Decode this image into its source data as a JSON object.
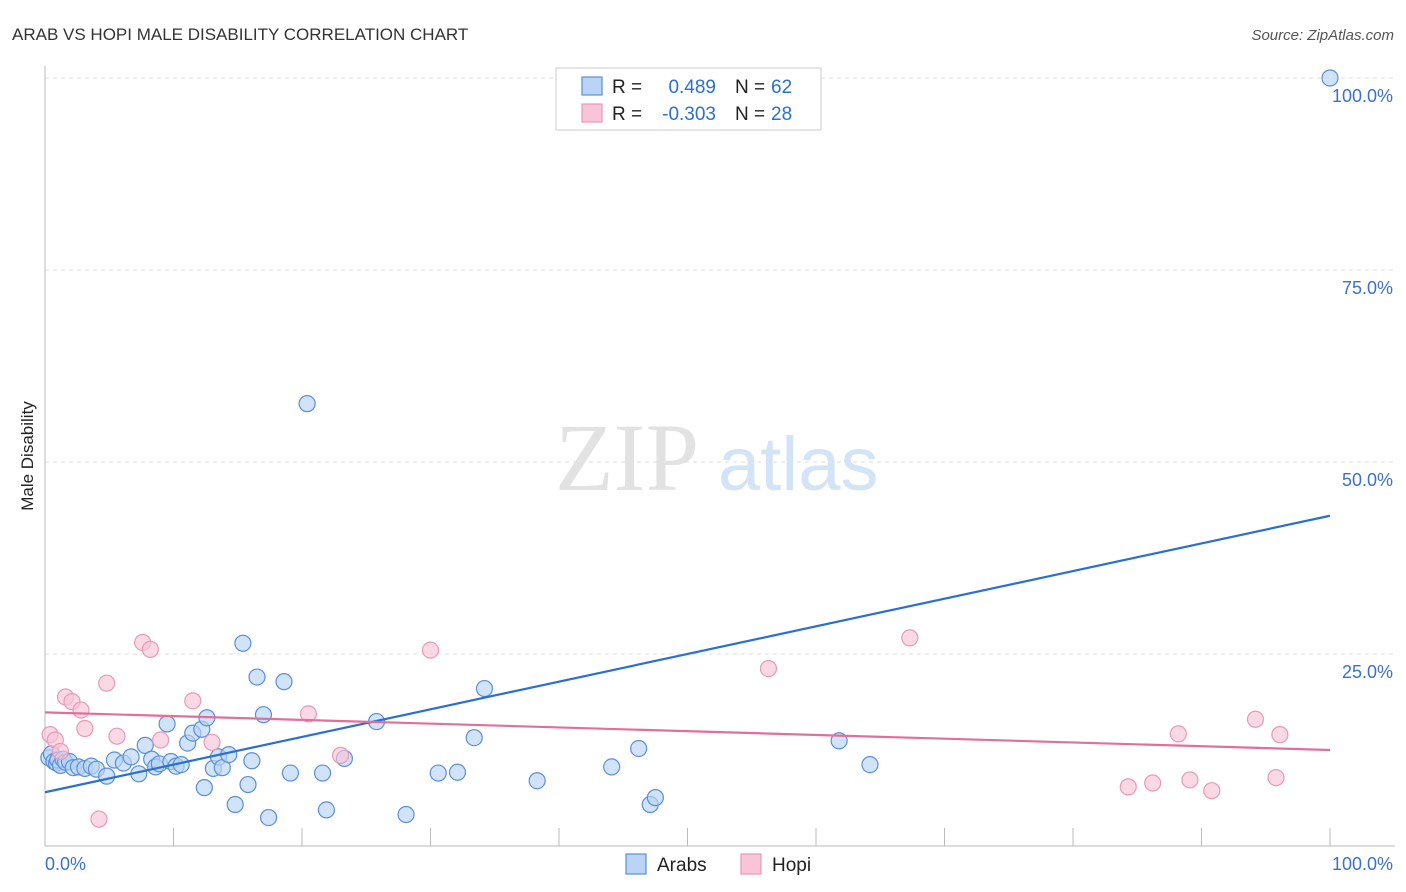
{
  "header": {
    "title": "ARAB VS HOPI MALE DISABILITY CORRELATION CHART",
    "source": "Source: ZipAtlas.com"
  },
  "watermark": {
    "zip": "ZIP",
    "atlas": "atlas"
  },
  "legend_stats": [
    {
      "r_label": "R =",
      "r_value": "0.489",
      "n_label": "N =",
      "n_value": "62",
      "color": "#5b8fd6",
      "fill": "#b9d4f5"
    },
    {
      "r_label": "R =",
      "r_value": "-0.303",
      "n_label": "N =",
      "n_value": "28",
      "color": "#e27a9f",
      "fill": "#f7c5d6"
    }
  ],
  "bottom_legend": [
    "Arabs",
    "Hopi"
  ],
  "colors": {
    "arabs_line": "#2a6fd3",
    "hopi_line": "#e0709a",
    "arabs_point_stroke": "#5b8fd6",
    "arabs_point_fill": "#b9d4f5",
    "hopi_point_stroke": "#e89ab6",
    "hopi_point_fill": "#f7c5d6",
    "tick_label": "#3a72c4",
    "grid": "#dddddd"
  },
  "chart_data": {
    "type": "scatter",
    "title": "ARAB VS HOPI MALE DISABILITY CORRELATION CHART",
    "xlabel": "",
    "ylabel": "Male Disability",
    "xlim": [
      0,
      100
    ],
    "ylim": [
      0,
      100
    ],
    "x_tick_labels": [
      "0.0%",
      "100.0%"
    ],
    "y_ticks": [
      25,
      50,
      75,
      100
    ],
    "y_tick_labels": [
      "25.0%",
      "50.0%",
      "75.0%",
      "100.0%"
    ],
    "grid": true,
    "legend_placement": "bottom-center",
    "series": [
      {
        "name": "Arabs",
        "points": [
          [
            0.3,
            11.5
          ],
          [
            0.5,
            12.0
          ],
          [
            0.7,
            11.0
          ],
          [
            0.9,
            10.8
          ],
          [
            1.0,
            11.2
          ],
          [
            1.2,
            10.5
          ],
          [
            1.4,
            11.3
          ],
          [
            1.6,
            10.9
          ],
          [
            1.9,
            11.0
          ],
          [
            2.2,
            10.2
          ],
          [
            2.6,
            10.3
          ],
          [
            3.1,
            10.1
          ],
          [
            3.6,
            10.4
          ],
          [
            4.0,
            10.0
          ],
          [
            4.8,
            9.1
          ],
          [
            5.4,
            11.2
          ],
          [
            6.1,
            10.8
          ],
          [
            6.7,
            11.6
          ],
          [
            7.3,
            9.4
          ],
          [
            7.8,
            13.1
          ],
          [
            8.3,
            11.3
          ],
          [
            8.6,
            10.3
          ],
          [
            8.9,
            10.7
          ],
          [
            9.5,
            15.9
          ],
          [
            9.8,
            11.0
          ],
          [
            10.2,
            10.4
          ],
          [
            10.6,
            10.6
          ],
          [
            11.1,
            13.4
          ],
          [
            11.5,
            14.7
          ],
          [
            12.2,
            15.2
          ],
          [
            12.4,
            7.6
          ],
          [
            12.6,
            16.7
          ],
          [
            13.1,
            10.1
          ],
          [
            13.5,
            11.6
          ],
          [
            13.8,
            10.2
          ],
          [
            14.3,
            11.9
          ],
          [
            14.8,
            5.4
          ],
          [
            15.4,
            26.4
          ],
          [
            15.8,
            8.0
          ],
          [
            16.1,
            11.1
          ],
          [
            16.5,
            22.0
          ],
          [
            17.0,
            17.1
          ],
          [
            17.4,
            3.7
          ],
          [
            18.6,
            21.4
          ],
          [
            19.1,
            9.5
          ],
          [
            20.4,
            57.6
          ],
          [
            21.6,
            9.5
          ],
          [
            21.9,
            4.7
          ],
          [
            23.3,
            11.4
          ],
          [
            25.8,
            16.2
          ],
          [
            28.1,
            4.1
          ],
          [
            30.6,
            9.5
          ],
          [
            32.1,
            9.6
          ],
          [
            33.4,
            14.1
          ],
          [
            34.2,
            20.5
          ],
          [
            38.3,
            8.5
          ],
          [
            44.1,
            10.3
          ],
          [
            46.2,
            12.7
          ],
          [
            47.1,
            5.4
          ],
          [
            47.5,
            6.3
          ],
          [
            61.8,
            13.7
          ],
          [
            64.2,
            10.6
          ],
          [
            100.0,
            100.0
          ]
        ]
      },
      {
        "name": "Hopi",
        "points": [
          [
            0.4,
            14.5
          ],
          [
            0.8,
            13.8
          ],
          [
            1.2,
            12.3
          ],
          [
            1.6,
            19.4
          ],
          [
            2.1,
            18.8
          ],
          [
            2.8,
            17.7
          ],
          [
            3.1,
            15.3
          ],
          [
            4.2,
            3.5
          ],
          [
            4.8,
            21.2
          ],
          [
            5.6,
            14.3
          ],
          [
            7.6,
            26.5
          ],
          [
            8.2,
            25.6
          ],
          [
            9.0,
            13.8
          ],
          [
            11.5,
            18.9
          ],
          [
            13.0,
            13.5
          ],
          [
            20.5,
            17.2
          ],
          [
            23.0,
            11.8
          ],
          [
            30.0,
            25.5
          ],
          [
            56.3,
            23.1
          ],
          [
            67.3,
            27.1
          ],
          [
            84.3,
            7.7
          ],
          [
            86.2,
            8.2
          ],
          [
            88.2,
            14.6
          ],
          [
            89.1,
            8.6
          ],
          [
            90.8,
            7.2
          ],
          [
            94.2,
            16.5
          ],
          [
            95.8,
            8.9
          ],
          [
            96.1,
            14.5
          ]
        ]
      }
    ],
    "trendlines": [
      {
        "name": "Arabs",
        "x": [
          0,
          100
        ],
        "y": [
          7.0,
          43.0
        ]
      },
      {
        "name": "Hopi",
        "x": [
          0,
          100
        ],
        "y": [
          17.4,
          12.5
        ]
      }
    ]
  }
}
